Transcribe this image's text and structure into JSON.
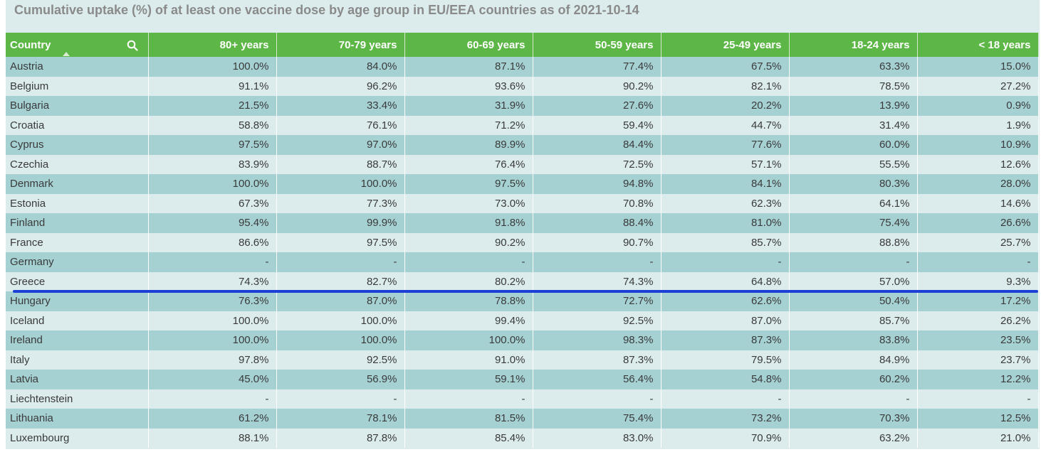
{
  "chart_data": {
    "type": "table",
    "title": "Cumulative uptake (%) of at least one vaccine dose by age group in EU/EEA countries as of 2021-10-14",
    "columns": [
      "Country",
      "80+ years",
      "70-79 years",
      "60-69 years",
      "50-59 years",
      "25-49 years",
      "18-24 years",
      "< 18 years"
    ],
    "rows": [
      [
        "Austria",
        "100.0%",
        "84.0%",
        "87.1%",
        "77.4%",
        "67.5%",
        "63.3%",
        "15.0%"
      ],
      [
        "Belgium",
        "91.1%",
        "96.2%",
        "93.6%",
        "90.2%",
        "82.1%",
        "78.5%",
        "27.2%"
      ],
      [
        "Bulgaria",
        "21.5%",
        "33.4%",
        "31.9%",
        "27.6%",
        "20.2%",
        "13.9%",
        "0.9%"
      ],
      [
        "Croatia",
        "58.8%",
        "76.1%",
        "71.2%",
        "59.4%",
        "44.7%",
        "31.4%",
        "1.9%"
      ],
      [
        "Cyprus",
        "97.5%",
        "97.0%",
        "89.9%",
        "84.4%",
        "77.6%",
        "60.0%",
        "10.9%"
      ],
      [
        "Czechia",
        "83.9%",
        "88.7%",
        "76.4%",
        "72.5%",
        "57.1%",
        "55.5%",
        "12.6%"
      ],
      [
        "Denmark",
        "100.0%",
        "100.0%",
        "97.5%",
        "94.8%",
        "84.1%",
        "80.3%",
        "28.0%"
      ],
      [
        "Estonia",
        "67.3%",
        "77.3%",
        "73.0%",
        "70.8%",
        "62.3%",
        "64.1%",
        "14.6%"
      ],
      [
        "Finland",
        "95.4%",
        "99.9%",
        "91.8%",
        "88.4%",
        "81.0%",
        "75.4%",
        "26.6%"
      ],
      [
        "France",
        "86.6%",
        "97.5%",
        "90.2%",
        "90.7%",
        "85.7%",
        "88.8%",
        "25.7%"
      ],
      [
        "Germany",
        "-",
        "-",
        "-",
        "-",
        "-",
        "-",
        "-"
      ],
      [
        "Greece",
        "74.3%",
        "82.7%",
        "80.2%",
        "74.3%",
        "64.8%",
        "57.0%",
        "9.3%"
      ],
      [
        "Hungary",
        "76.3%",
        "87.0%",
        "78.8%",
        "72.7%",
        "62.6%",
        "50.4%",
        "17.2%"
      ],
      [
        "Iceland",
        "100.0%",
        "100.0%",
        "99.4%",
        "92.5%",
        "87.0%",
        "85.7%",
        "26.2%"
      ],
      [
        "Ireland",
        "100.0%",
        "100.0%",
        "100.0%",
        "98.3%",
        "87.3%",
        "83.8%",
        "23.5%"
      ],
      [
        "Italy",
        "97.8%",
        "92.5%",
        "91.0%",
        "87.3%",
        "79.5%",
        "84.9%",
        "23.7%"
      ],
      [
        "Latvia",
        "45.0%",
        "56.9%",
        "59.1%",
        "56.4%",
        "54.8%",
        "60.2%",
        "12.2%"
      ],
      [
        "Liechtenstein",
        "-",
        "-",
        "-",
        "-",
        "-",
        "-",
        "-"
      ],
      [
        "Lithuania",
        "61.2%",
        "78.1%",
        "81.5%",
        "75.4%",
        "73.2%",
        "70.3%",
        "12.5%"
      ],
      [
        "Luxembourg",
        "88.1%",
        "87.8%",
        "85.4%",
        "83.0%",
        "70.9%",
        "63.2%",
        "21.0%"
      ]
    ]
  },
  "icons": {
    "search": "search-icon",
    "sort": "sort-ascending-icon"
  },
  "colors": {
    "header_bg": "#5db746",
    "row_odd": "#a6d1d3",
    "row_even": "#dcecec",
    "title_text": "#8a8a8a",
    "marker_line": "#1c3fd6"
  }
}
